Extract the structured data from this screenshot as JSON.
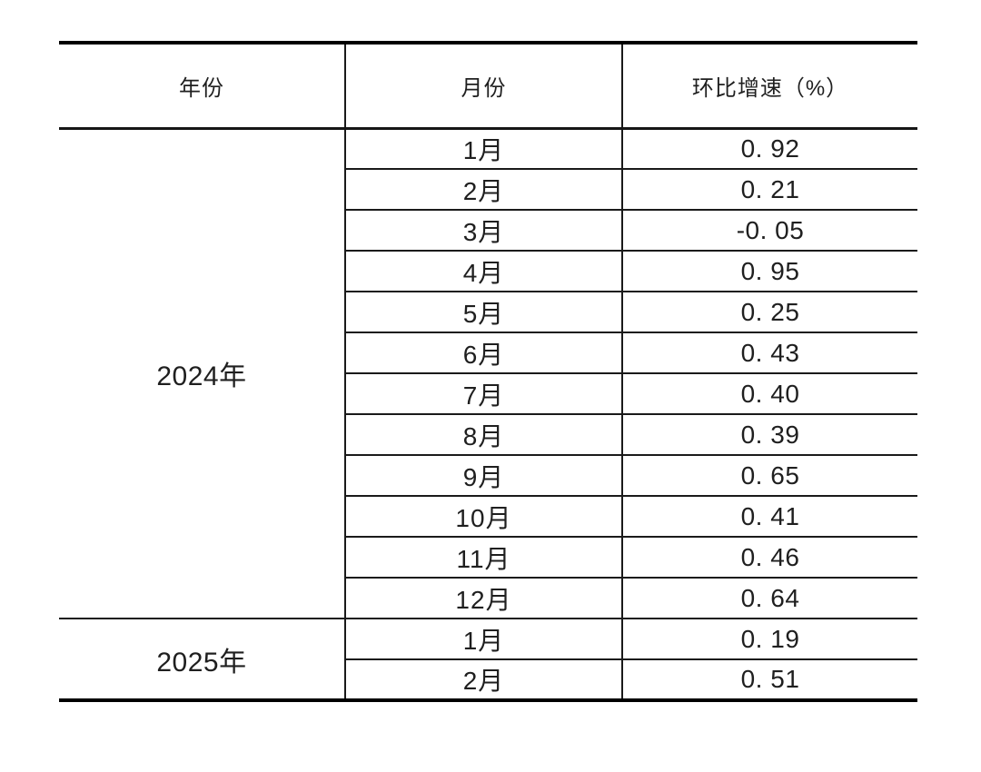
{
  "page": {
    "background": "#ffffff",
    "text_color": "#1f1f1f",
    "thin_line_color": "#1a1a1a",
    "thick_line_color": "#000000"
  },
  "table": {
    "header": {
      "year": "年份",
      "month": "月份",
      "growth": "环比增速（%）"
    },
    "sections": [
      {
        "year": "2024年",
        "rows": [
          {
            "month": "1月",
            "value": "0. 92"
          },
          {
            "month": "2月",
            "value": "0. 21"
          },
          {
            "month": "3月",
            "value": "-0. 05"
          },
          {
            "month": "4月",
            "value": "0. 95"
          },
          {
            "month": "5月",
            "value": "0. 25"
          },
          {
            "month": "6月",
            "value": "0. 43"
          },
          {
            "month": "7月",
            "value": "0. 40"
          },
          {
            "month": "8月",
            "value": "0. 39"
          },
          {
            "month": "9月",
            "value": "0. 65"
          },
          {
            "month": "10月",
            "value": "0. 41"
          },
          {
            "month": "11月",
            "value": "0. 46"
          },
          {
            "month": "12月",
            "value": "0. 64"
          }
        ]
      },
      {
        "year": "2025年",
        "rows": [
          {
            "month": "1月",
            "value": "0. 19"
          },
          {
            "month": "2月",
            "value": "0. 51"
          }
        ]
      }
    ]
  }
}
